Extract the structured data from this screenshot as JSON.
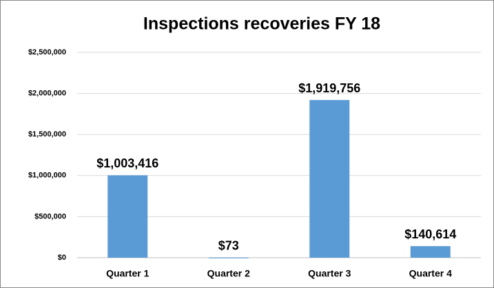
{
  "chart_data": {
    "type": "bar",
    "title": "Inspections recoveries FY 18",
    "categories": [
      "Quarter 1",
      "Quarter 2",
      "Quarter 3",
      "Quarter 4"
    ],
    "values": [
      1003416,
      73,
      1919756,
      140614
    ],
    "value_labels": [
      "$1,003,416",
      "$73",
      "$1,919,756",
      "$140,614"
    ],
    "color": "#5b9bd5",
    "ylim": [
      0,
      2500000
    ],
    "yticks": [
      {
        "value": 0,
        "label": "$0"
      },
      {
        "value": 500000,
        "label": "$500,000"
      },
      {
        "value": 1000000,
        "label": "$1,000,000"
      },
      {
        "value": 1500000,
        "label": "$1,500,000"
      },
      {
        "value": 2000000,
        "label": "$2,000,000"
      },
      {
        "value": 2500000,
        "label": "$2,500,000"
      }
    ],
    "grid": true
  }
}
